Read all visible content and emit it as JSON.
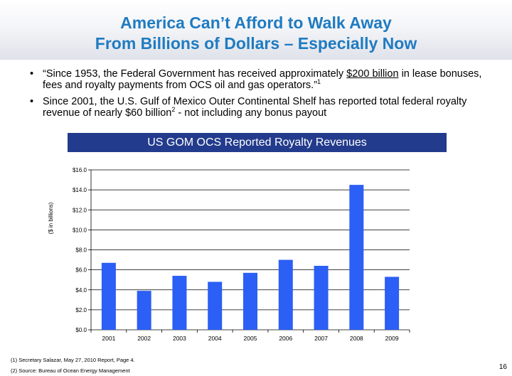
{
  "slide": {
    "title_line1": "America Can’t Afford to Walk Away",
    "title_line2": "From Billions of Dollars – Especially Now",
    "bullets": [
      {
        "pre": "“Since 1953, the Federal Government has received approximately ",
        "underlined": "$200 billion",
        "post": " in lease bonuses, fees and royalty payments from OCS oil and gas operators.”",
        "sup": "1"
      },
      {
        "pre": "Since 2001, the U.S. Gulf of Mexico Outer Continental Shelf has reported total federal royalty revenue of nearly $60 billion",
        "sup": "2",
        "post": " - not including any bonus payout"
      }
    ],
    "bullet_char": "•",
    "footnotes": [
      "(1)   Secretary Salazar, May 27, 2010 Report, Page 4.",
      "(2)   Source: Bureau of Ocean Energy Management"
    ],
    "page_number": "16"
  },
  "chart_data": {
    "type": "bar",
    "title": "US GOM OCS Reported Royalty Revenues",
    "ylabel": "($ in billions)",
    "xlabel": "",
    "categories": [
      "2001",
      "2002",
      "2003",
      "2004",
      "2005",
      "2006",
      "2007",
      "2008",
      "2009"
    ],
    "values": [
      6.7,
      3.9,
      5.4,
      4.8,
      5.7,
      7.0,
      6.4,
      14.5,
      5.3
    ],
    "ylim": [
      0,
      16
    ],
    "yticks": [
      "$0.0",
      "$2.0",
      "$4.0",
      "$6.0",
      "$8.0",
      "$10.0",
      "$12.0",
      "$14.0",
      "$16.0"
    ],
    "grid": true,
    "legend": "none",
    "bar_color": "#2b5ff5"
  }
}
